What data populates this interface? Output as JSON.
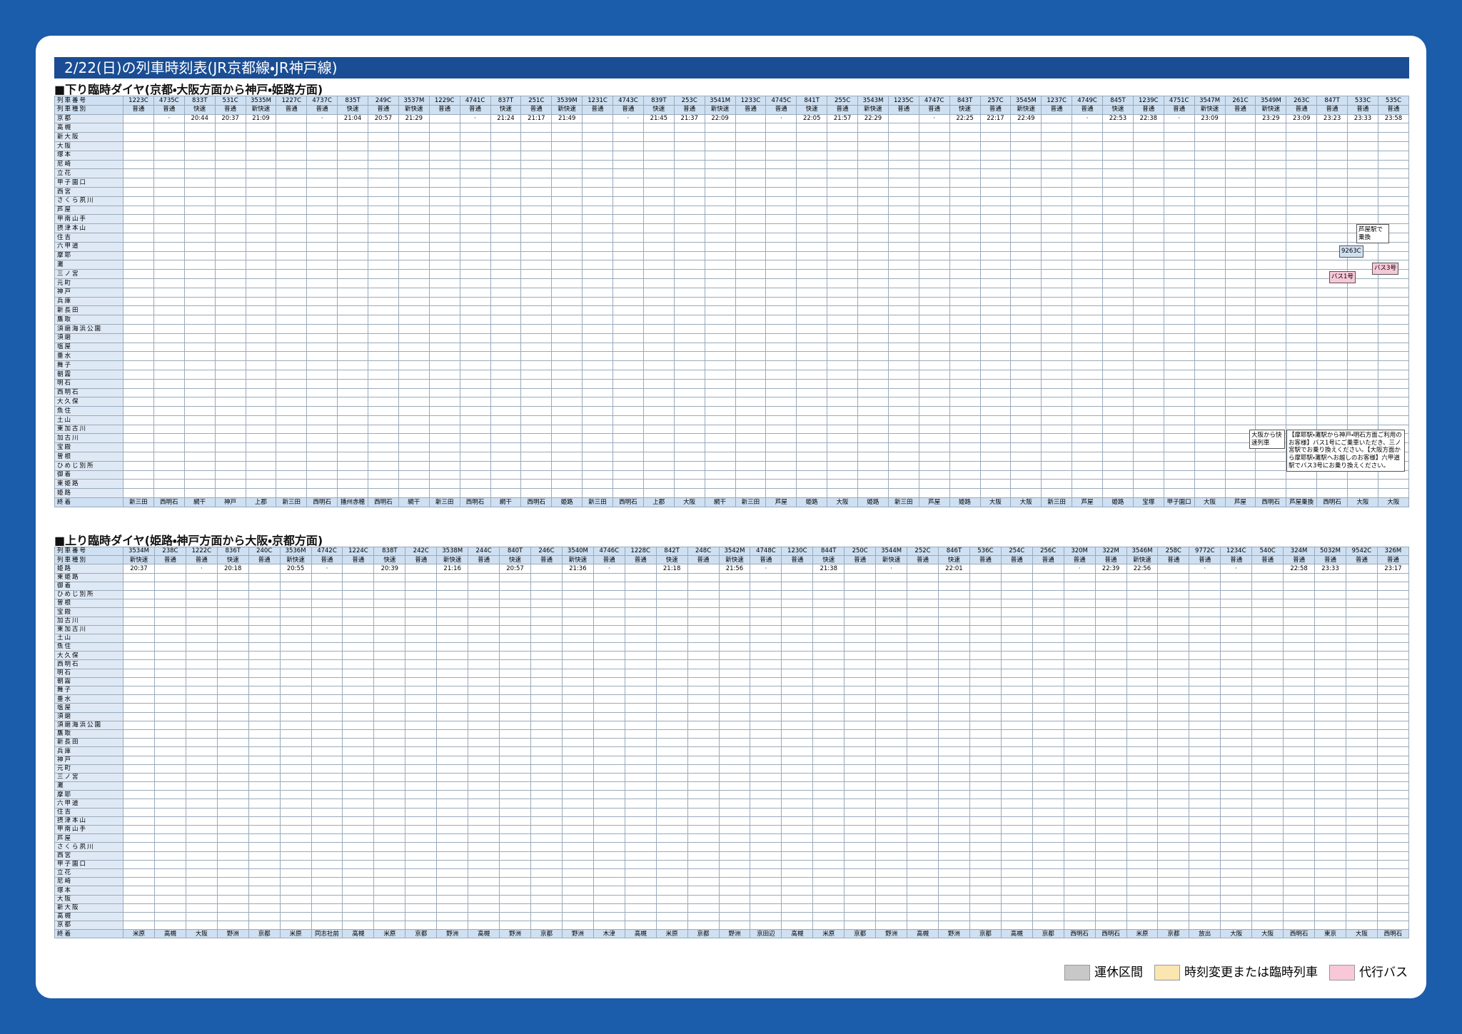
{
  "header": {
    "title": "2/22(日)の列車時刻表(JR京都線・JR神戸線)"
  },
  "down": {
    "heading": "■下り臨時ダイヤ(京都・大阪方面から神戸・姫路方面)",
    "row_labels": [
      "列車番号",
      "列車種別"
    ],
    "train_numbers": [
      "1223C",
      "4735C",
      "833T",
      "531C",
      "3535M",
      "1227C",
      "4737C",
      "835T",
      "249C",
      "3537M",
      "1229C",
      "4741C",
      "837T",
      "251C",
      "3539M",
      "1231C",
      "4743C",
      "839T",
      "253C",
      "3541M",
      "1233C",
      "4745C",
      "841T",
      "255C",
      "3543M",
      "1235C",
      "4747C",
      "843T",
      "257C",
      "3545M",
      "1237C",
      "4749C",
      "845T",
      "1239C",
      "4751C",
      "3547M",
      "261C",
      "3549M",
      "263C",
      "847T",
      "533C",
      "535C"
    ],
    "train_types": [
      "普通",
      "普通",
      "快速",
      "普通",
      "新快速",
      "普通",
      "普通",
      "快速",
      "普通",
      "新快速",
      "普通",
      "普通",
      "快速",
      "普通",
      "新快速",
      "普通",
      "普通",
      "快速",
      "普通",
      "新快速",
      "普通",
      "普通",
      "快速",
      "普通",
      "新快速",
      "普通",
      "普通",
      "快速",
      "普通",
      "新快速",
      "普通",
      "普通",
      "快速",
      "普通",
      "普通",
      "新快速",
      "普通",
      "新快速",
      "普通",
      "普通",
      "普通",
      "普通"
    ],
    "stations": [
      {
        "name": "京都",
        "times": [
          null,
          "·",
          "20:44",
          "20:37",
          "21:09",
          null,
          "·",
          "21:04",
          "20:57",
          "21:29",
          null,
          "·",
          "21:24",
          "21:17",
          "21:49",
          null,
          "·",
          "21:45",
          "21:37",
          "22:09",
          null,
          "·",
          "22:05",
          "21:57",
          "22:29",
          null,
          "·",
          "22:25",
          "22:17",
          "22:49",
          null,
          "·",
          "22:53",
          "22:38",
          "·",
          "23:09",
          null,
          "23:29",
          "23:09",
          "23:23",
          "23:33",
          "23:58"
        ]
      },
      {
        "name": "高槻"
      },
      {
        "name": "新大阪"
      },
      {
        "name": "大阪"
      },
      {
        "name": "塚本"
      },
      {
        "name": "尼崎"
      },
      {
        "name": "立花"
      },
      {
        "name": "甲子園口"
      },
      {
        "name": "西宮"
      },
      {
        "name": "さくら夙川"
      },
      {
        "name": "芦屋"
      },
      {
        "name": "甲南山手"
      },
      {
        "name": "摂津本山"
      },
      {
        "name": "住吉"
      },
      {
        "name": "六甲道"
      },
      {
        "name": "摩耶"
      },
      {
        "name": "灘"
      },
      {
        "name": "三ノ宮"
      },
      {
        "name": "元町"
      },
      {
        "name": "神戸"
      },
      {
        "name": "兵庫"
      },
      {
        "name": "新長田"
      },
      {
        "name": "鷹取"
      },
      {
        "name": "須磨海浜公園"
      },
      {
        "name": "須磨"
      },
      {
        "name": "塩屋"
      },
      {
        "name": "垂水"
      },
      {
        "name": "舞子"
      },
      {
        "name": "朝霧"
      },
      {
        "name": "明石"
      },
      {
        "name": "西明石"
      },
      {
        "name": "大久保"
      },
      {
        "name": "魚住"
      },
      {
        "name": "土山"
      },
      {
        "name": "東加古川"
      },
      {
        "name": "加古川"
      },
      {
        "name": "宝殿"
      },
      {
        "name": "曽根"
      },
      {
        "name": "ひめじ別所"
      },
      {
        "name": "御着"
      },
      {
        "name": "東姫路"
      },
      {
        "name": "姫路"
      }
    ],
    "end_label": "終着",
    "destinations": [
      "新三田",
      "西明石",
      "網干",
      "神戸",
      "上郡",
      "新三田",
      "西明石",
      "播州赤穂",
      "西明石",
      "網干",
      "新三田",
      "西明石",
      "網干",
      "西明石",
      "姫路",
      "新三田",
      "西明石",
      "上郡",
      "大阪",
      "網干",
      "新三田",
      "芦屋",
      "姫路",
      "大阪",
      "姫路",
      "新三田",
      "芦屋",
      "姫路",
      "大阪",
      "大阪",
      "新三田",
      "芦屋",
      "姫路",
      "宝塚",
      "甲子園口",
      "大阪",
      "芦屋",
      "西明石",
      "芦屋乗換",
      "西明石",
      "大阪",
      "大阪"
    ],
    "notes": [
      "大阪から快速列車",
      "【摩耶駅・灘駅から神戸・明石方面ご利用のお客様】バス1号にご乗車いただき、三ノ宮駅でお乗り換えください。【大阪方面から摩耶駅・灘駅へお越しのお客様】六甲道駅でバス3号にお乗り換えください。",
      "バス1号",
      "バス3号",
      "9263C",
      "芦屋駅で乗換"
    ]
  },
  "up": {
    "heading": "■上り臨時ダイヤ(姫路・神戸方面から大阪・京都方面)",
    "row_labels": [
      "列車番号",
      "列車種別"
    ],
    "train_numbers": [
      "3534M",
      "238C",
      "1222C",
      "836T",
      "240C",
      "3536M",
      "4742C",
      "1224C",
      "838T",
      "242C",
      "3538M",
      "244C",
      "840T",
      "246C",
      "3540M",
      "4746C",
      "1228C",
      "842T",
      "248C",
      "3542M",
      "4748C",
      "1230C",
      "844T",
      "250C",
      "3544M",
      "252C",
      "846T",
      "536C",
      "254C",
      "256C",
      "320M",
      "322M",
      "3546M",
      "258C",
      "9772C",
      "1234C",
      "540C",
      "324M",
      "5032M",
      "9542C",
      "326M"
    ],
    "train_types": [
      "新快速",
      "普通",
      "普通",
      "快速",
      "普通",
      "新快速",
      "普通",
      "普通",
      "快速",
      "普通",
      "新快速",
      "普通",
      "快速",
      "普通",
      "新快速",
      "普通",
      "普通",
      "快速",
      "普通",
      "新快速",
      "普通",
      "普通",
      "快速",
      "普通",
      "新快速",
      "普通",
      "快速",
      "普通",
      "普通",
      "普通",
      "普通",
      "普通",
      "新快速",
      "普通",
      "普通",
      "普通",
      "普通",
      "普通",
      "普通",
      "普通",
      "普通"
    ],
    "stations": [
      {
        "name": "姫路",
        "times": [
          "20:37",
          null,
          "·",
          "20:18",
          null,
          "20:55",
          "·",
          null,
          "20:39",
          null,
          "21:16",
          null,
          "20:57",
          null,
          "21:36",
          "·",
          null,
          "21:18",
          null,
          "21:56",
          "·",
          null,
          "21:38",
          null,
          "·",
          null,
          "22:01",
          null,
          null,
          null,
          "·",
          "22:39",
          "22:56",
          null,
          "·",
          "·",
          null,
          "22:58",
          "23:33",
          null,
          "23:17"
        ]
      },
      {
        "name": "東姫路"
      },
      {
        "name": "御着"
      },
      {
        "name": "ひめじ別所"
      },
      {
        "name": "曽根"
      },
      {
        "name": "宝殿"
      },
      {
        "name": "加古川"
      },
      {
        "name": "東加古川"
      },
      {
        "name": "土山"
      },
      {
        "name": "魚住"
      },
      {
        "name": "大久保"
      },
      {
        "name": "西明石"
      },
      {
        "name": "明石"
      },
      {
        "name": "朝霧"
      },
      {
        "name": "舞子"
      },
      {
        "name": "垂水"
      },
      {
        "name": "塩屋"
      },
      {
        "name": "須磨"
      },
      {
        "name": "須磨海浜公園"
      },
      {
        "name": "鷹取"
      },
      {
        "name": "新長田"
      },
      {
        "name": "兵庫"
      },
      {
        "name": "神戸"
      },
      {
        "name": "元町"
      },
      {
        "name": "三ノ宮"
      },
      {
        "name": "灘"
      },
      {
        "name": "摩耶"
      },
      {
        "name": "六甲道"
      },
      {
        "name": "住吉"
      },
      {
        "name": "摂津本山"
      },
      {
        "name": "甲南山手"
      },
      {
        "name": "芦屋"
      },
      {
        "name": "さくら夙川"
      },
      {
        "name": "西宮"
      },
      {
        "name": "甲子園口"
      },
      {
        "name": "立花"
      },
      {
        "name": "尼崎"
      },
      {
        "name": "塚本"
      },
      {
        "name": "大阪"
      },
      {
        "name": "新大阪"
      },
      {
        "name": "高槻"
      },
      {
        "name": "京都"
      }
    ],
    "end_label": "終着",
    "destinations": [
      "米原",
      "高槻",
      "大阪",
      "野洲",
      "京都",
      "米原",
      "同志社前",
      "高槻",
      "米原",
      "京都",
      "野洲",
      "高槻",
      "野洲",
      "京都",
      "野洲",
      "木津",
      "高槻",
      "米原",
      "京都",
      "野洲",
      "京田辺",
      "高槻",
      "米原",
      "京都",
      "野洲",
      "高槻",
      "野洲",
      "京都",
      "高槻",
      "京都",
      "西明石",
      "西明石",
      "米原",
      "京都",
      "放出",
      "大阪",
      "大阪",
      "西明石",
      "東京",
      "大阪",
      "西明石"
    ]
  },
  "legend": [
    "運休区間",
    "時刻変更または臨時列車",
    "代行バス"
  ]
}
